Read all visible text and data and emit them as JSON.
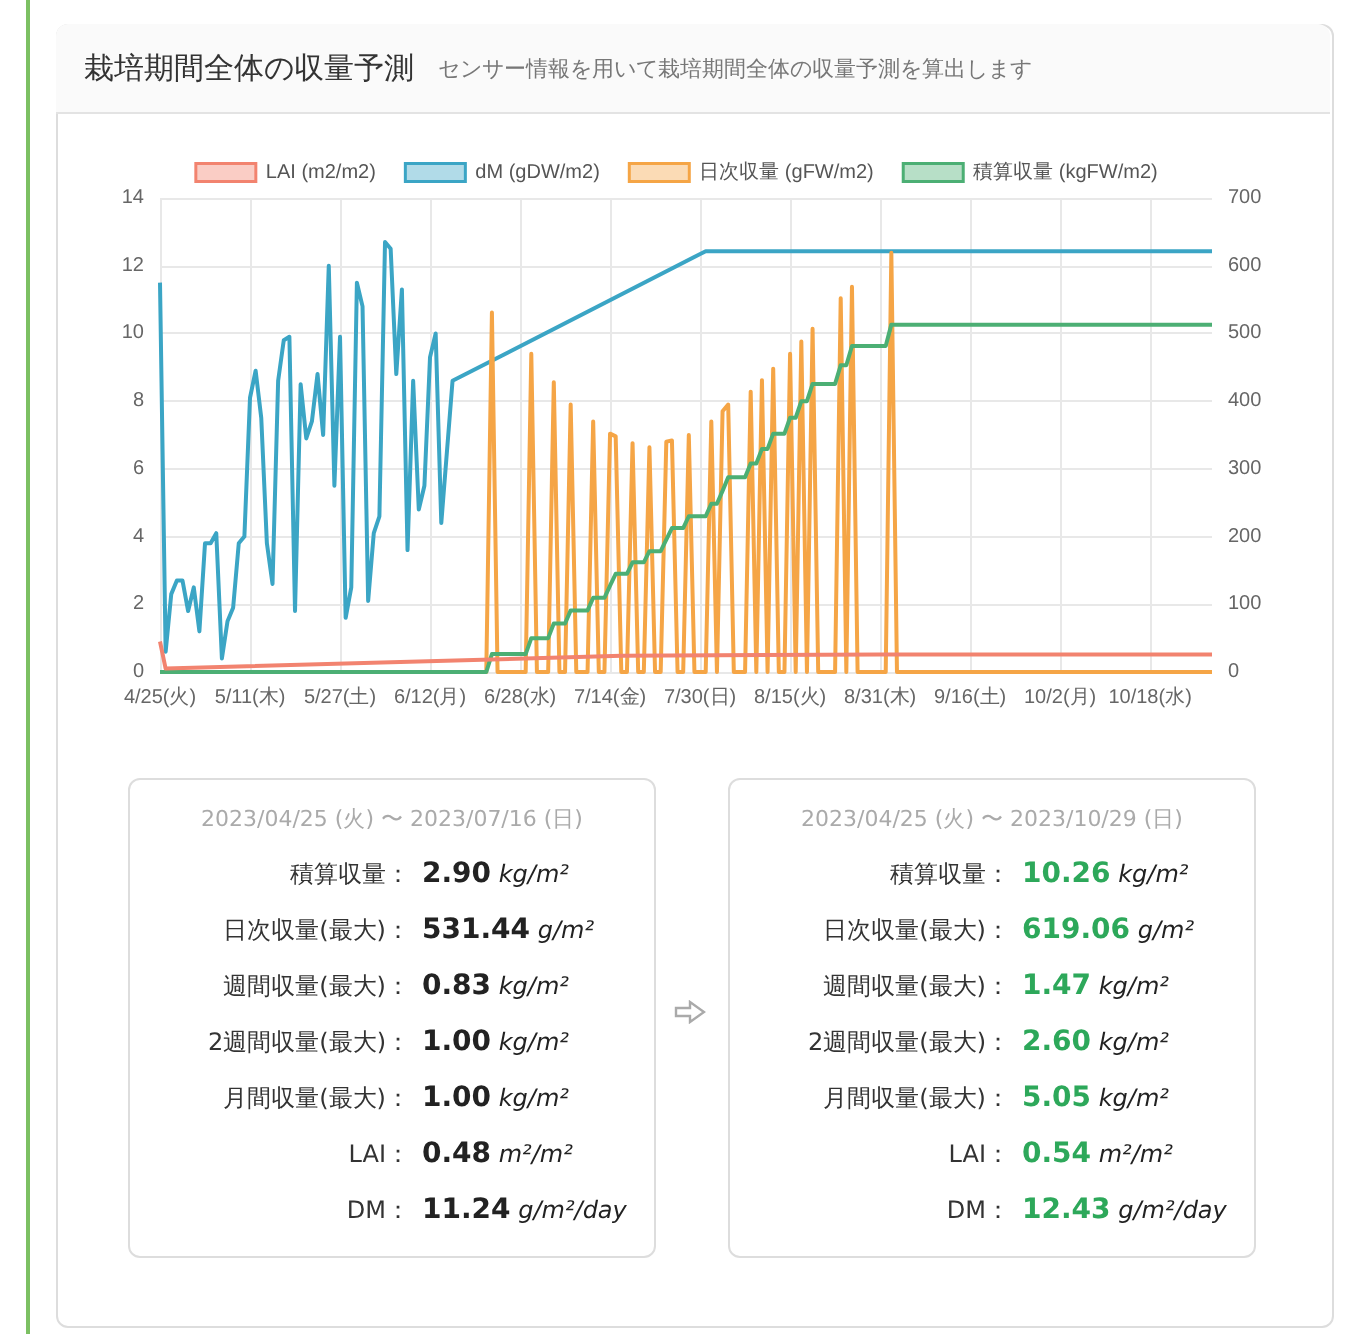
{
  "chart_data": [
    {
      "type": "line",
      "title": "栽培期間全体の収量予測",
      "subtitle": "センサー情報を用いて栽培期間全体の収量予測を算出します",
      "xlim": [
        "2023-04-25",
        "2023-10-29"
      ],
      "xticks": [
        {
          "value": "2023-04-25",
          "label": "4/25(火)"
        },
        {
          "value": "2023-05-11",
          "label": "5/11(木)"
        },
        {
          "value": "2023-05-27",
          "label": "5/27(土)"
        },
        {
          "value": "2023-06-12",
          "label": "6/12(月)"
        },
        {
          "value": "2023-06-28",
          "label": "6/28(水)"
        },
        {
          "value": "2023-07-14",
          "label": "7/14(金)"
        },
        {
          "value": "2023-07-30",
          "label": "7/30(日)"
        },
        {
          "value": "2023-08-15",
          "label": "8/15(火)"
        },
        {
          "value": "2023-08-31",
          "label": "8/31(木)"
        },
        {
          "value": "2023-09-16",
          "label": "9/16(土)"
        },
        {
          "value": "2023-10-02",
          "label": "10/2(月)"
        },
        {
          "value": "2023-10-18",
          "label": "10/18(水)"
        }
      ],
      "ylim": [
        0,
        14
      ],
      "yticks": [
        0,
        2,
        4,
        6,
        8,
        10,
        12,
        14
      ],
      "y2lim": [
        0,
        700
      ],
      "y2ticks": [
        0,
        100,
        200,
        300,
        400,
        500,
        600,
        700
      ],
      "grid": true,
      "legend": "top",
      "series": [
        {
          "name": "LAI (m2/m2)",
          "color": "#f2836f",
          "x": [
            "2023-04-25",
            "2023-04-26",
            "2023-07-16",
            "2023-08-31",
            "2023-10-29"
          ],
          "values": [
            0.9,
            0.1,
            0.48,
            0.52,
            0.52
          ]
        },
        {
          "name": "dM (gDW/m2)",
          "color": "#3ba5c5",
          "x": [
            "2023-04-25",
            "2023-04-26",
            "2023-04-27",
            "2023-04-28",
            "2023-04-29",
            "2023-04-30",
            "2023-05-01",
            "2023-05-02",
            "2023-05-03",
            "2023-05-04",
            "2023-05-05",
            "2023-05-06",
            "2023-05-07",
            "2023-05-08",
            "2023-05-09",
            "2023-05-10",
            "2023-05-11",
            "2023-05-12",
            "2023-05-13",
            "2023-05-14",
            "2023-05-15",
            "2023-05-16",
            "2023-05-17",
            "2023-05-18",
            "2023-05-19",
            "2023-05-20",
            "2023-05-21",
            "2023-05-22",
            "2023-05-23",
            "2023-05-24",
            "2023-05-25",
            "2023-05-26",
            "2023-05-27",
            "2023-05-28",
            "2023-05-29",
            "2023-05-30",
            "2023-05-31",
            "2023-06-01",
            "2023-06-02",
            "2023-06-03",
            "2023-06-04",
            "2023-06-05",
            "2023-06-06",
            "2023-06-07",
            "2023-06-08",
            "2023-06-09",
            "2023-06-10",
            "2023-06-11",
            "2023-06-12",
            "2023-06-13",
            "2023-06-14",
            "2023-06-16",
            "2023-07-31",
            "2023-10-29"
          ],
          "values": [
            11.5,
            0.6,
            2.3,
            2.7,
            2.7,
            1.8,
            2.5,
            1.2,
            3.8,
            3.8,
            4.1,
            0.4,
            1.5,
            1.9,
            3.8,
            4.0,
            8.1,
            8.9,
            7.5,
            3.8,
            2.6,
            8.6,
            9.8,
            9.9,
            1.8,
            8.5,
            6.9,
            7.4,
            8.8,
            7.0,
            12.0,
            5.5,
            9.9,
            1.6,
            2.5,
            11.5,
            10.8,
            2.1,
            4.1,
            4.6,
            12.7,
            12.5,
            8.8,
            11.3,
            3.6,
            8.6,
            4.8,
            5.5,
            9.3,
            10.0,
            4.4,
            8.6,
            12.43,
            12.43
          ]
        },
        {
          "name": "日次収量 (gFW/m2)",
          "color": "#f5a546",
          "axis": "y2",
          "x": [
            "2023-04-25",
            "2023-06-22",
            "2023-06-23",
            "2023-06-24",
            "2023-06-29",
            "2023-06-30",
            "2023-07-01",
            "2023-07-03",
            "2023-07-04",
            "2023-07-05",
            "2023-07-06",
            "2023-07-07",
            "2023-07-08",
            "2023-07-10",
            "2023-07-11",
            "2023-07-12",
            "2023-07-13",
            "2023-07-14",
            "2023-07-15",
            "2023-07-16",
            "2023-07-17",
            "2023-07-18",
            "2023-07-19",
            "2023-07-20",
            "2023-07-21",
            "2023-07-22",
            "2023-07-23",
            "2023-07-24",
            "2023-07-25",
            "2023-07-26",
            "2023-07-27",
            "2023-07-28",
            "2023-07-29",
            "2023-07-31",
            "2023-08-01",
            "2023-08-02",
            "2023-08-03",
            "2023-08-04",
            "2023-08-05",
            "2023-08-07",
            "2023-08-08",
            "2023-08-09",
            "2023-08-10",
            "2023-08-11",
            "2023-08-12",
            "2023-08-13",
            "2023-08-14",
            "2023-08-15",
            "2023-08-16",
            "2023-08-17",
            "2023-08-18",
            "2023-08-19",
            "2023-08-20",
            "2023-08-23",
            "2023-08-24",
            "2023-08-25",
            "2023-08-26",
            "2023-08-27",
            "2023-09-01",
            "2023-09-02",
            "2023-09-03",
            "2023-10-29"
          ],
          "values": [
            0,
            0,
            531,
            0,
            0,
            470,
            0,
            0,
            428,
            0,
            0,
            395,
            0,
            0,
            370,
            0,
            0,
            352,
            348,
            0,
            0,
            338,
            0,
            0,
            332,
            0,
            0,
            340,
            342,
            0,
            0,
            350,
            0,
            0,
            370,
            0,
            385,
            395,
            0,
            0,
            414,
            0,
            431,
            0,
            448,
            0,
            0,
            470,
            0,
            488,
            0,
            507,
            0,
            0,
            552,
            0,
            569,
            0,
            0,
            619,
            0,
            0
          ]
        },
        {
          "name": "積算収量 (kgFW/m2)",
          "color": "#4caf74",
          "x": [
            "2023-04-25",
            "2023-06-22",
            "2023-06-23",
            "2023-06-29",
            "2023-06-30",
            "2023-07-03",
            "2023-07-04",
            "2023-07-06",
            "2023-07-07",
            "2023-07-10",
            "2023-07-11",
            "2023-07-13",
            "2023-07-14",
            "2023-07-15",
            "2023-07-17",
            "2023-07-18",
            "2023-07-20",
            "2023-07-21",
            "2023-07-23",
            "2023-07-24",
            "2023-07-25",
            "2023-07-27",
            "2023-07-28",
            "2023-07-31",
            "2023-08-01",
            "2023-08-02",
            "2023-08-03",
            "2023-08-04",
            "2023-08-07",
            "2023-08-08",
            "2023-08-09",
            "2023-08-10",
            "2023-08-11",
            "2023-08-12",
            "2023-08-14",
            "2023-08-15",
            "2023-08-16",
            "2023-08-17",
            "2023-08-18",
            "2023-08-19",
            "2023-08-23",
            "2023-08-24",
            "2023-08-25",
            "2023-08-26",
            "2023-09-01",
            "2023-09-02",
            "2023-10-29"
          ],
          "values": [
            0,
            0,
            0.53,
            0.53,
            1.0,
            1.0,
            1.43,
            1.43,
            1.82,
            1.82,
            2.19,
            2.19,
            2.55,
            2.9,
            2.9,
            3.24,
            3.24,
            3.57,
            3.57,
            3.91,
            4.25,
            4.25,
            4.6,
            4.6,
            4.97,
            4.97,
            5.35,
            5.75,
            5.75,
            6.16,
            6.16,
            6.59,
            6.59,
            7.04,
            7.04,
            7.51,
            7.51,
            8.0,
            8.0,
            8.51,
            8.51,
            9.06,
            9.06,
            9.63,
            9.63,
            10.26,
            10.26
          ]
        }
      ]
    },
    {
      "type": "other",
      "title": "2023/04/25 (火) 〜 2023/07/16 (日)",
      "annotations": [
        "積算収量：",
        "2.90 kg/m²",
        "日次収量(最大)：",
        "531.44 g/m²",
        "週間収量(最大)：",
        "0.83 kg/m²",
        "2週間収量(最大)：",
        "1.00 kg/m²",
        "月間収量(最大)：",
        "1.00 kg/m²",
        "LAI：",
        "0.48 m²/m²",
        "DM：",
        "11.24 g/m²/day"
      ]
    },
    {
      "type": "other",
      "title": "2023/04/25 (火) 〜 2023/10/29 (日)",
      "annotations": [
        "積算収量：",
        "10.26 kg/m²",
        "日次収量(最大)：",
        "619.06 g/m²",
        "週間収量(最大)：",
        "1.47 kg/m²",
        "2週間収量(最大)：",
        "2.60 kg/m²",
        "月間収量(最大)：",
        "5.05 kg/m²",
        "LAI：",
        "0.54 m²/m²",
        "DM：",
        "12.43 g/m²/day"
      ]
    }
  ]
}
